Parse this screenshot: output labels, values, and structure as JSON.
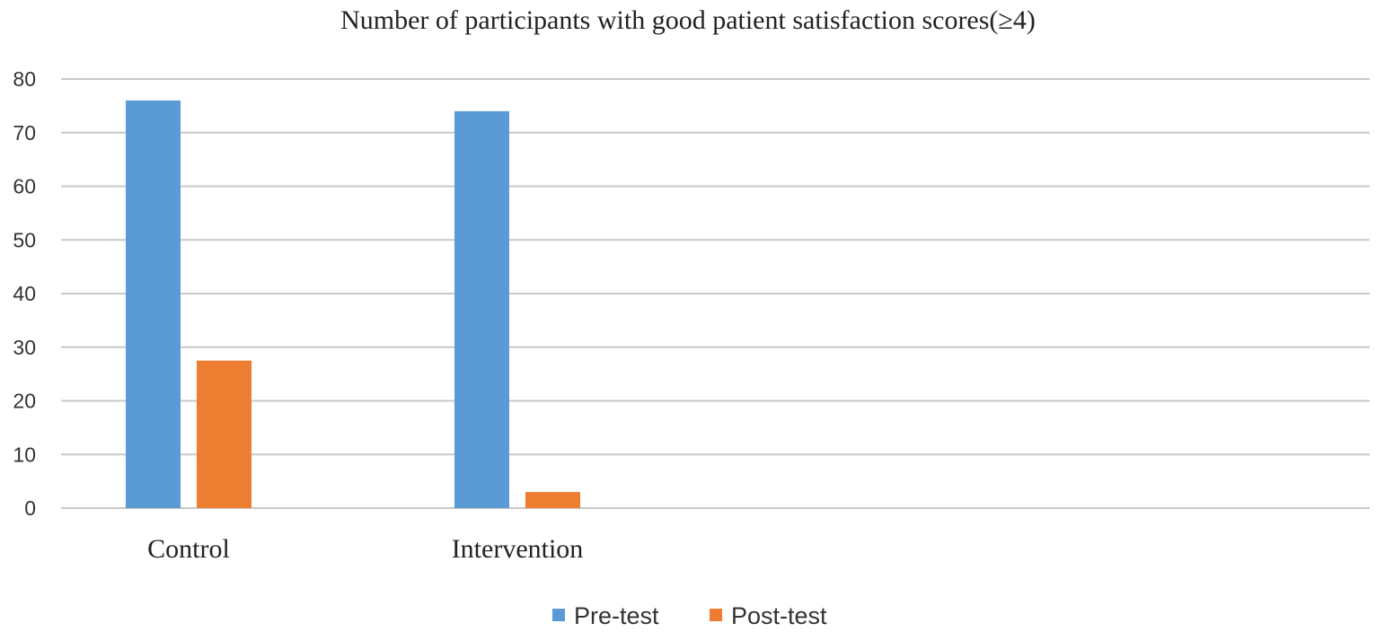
{
  "chart_data": {
    "type": "bar",
    "title": "Number  of participants with good patient satisfaction scores(≥4)",
    "xlabel": "",
    "ylabel": "",
    "categories": [
      "Control",
      "Intervention"
    ],
    "series": [
      {
        "name": "Pre-test",
        "values": [
          76,
          74
        ],
        "color": "#5b9bd5"
      },
      {
        "name": "Post-test",
        "values": [
          27.5,
          3
        ],
        "color": "#ed7d31"
      }
    ],
    "ylim": [
      0,
      80
    ],
    "yticks": [
      0,
      10,
      20,
      30,
      40,
      50,
      60,
      70,
      80
    ],
    "grid": true,
    "legend_position": "bottom"
  }
}
